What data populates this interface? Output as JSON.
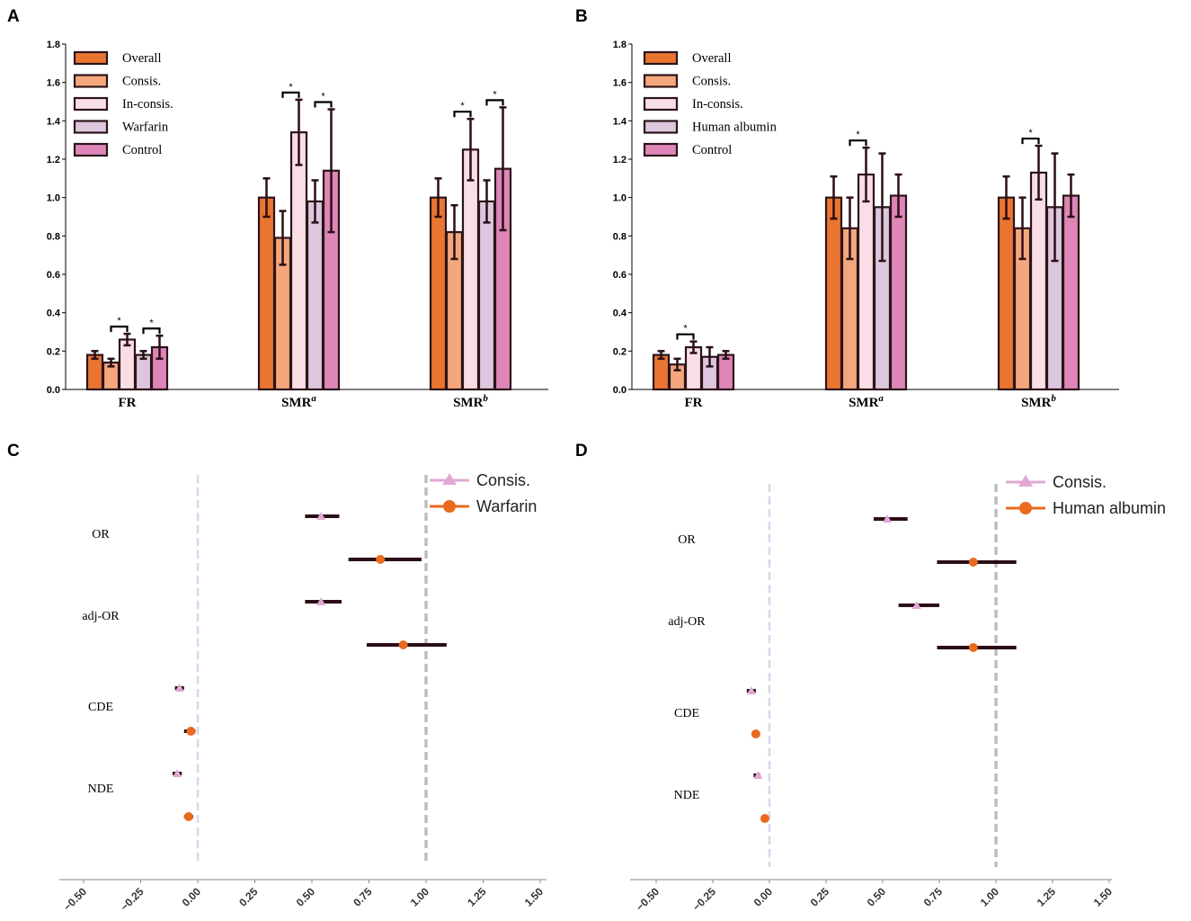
{
  "colors": {
    "Overall": "#ea7530",
    "Consis.": "#f4a77c",
    "In-consis.": "#f9dfe5",
    "Warfarin": "#dcc7df",
    "Human albumin": "#dcc7df",
    "Control": "#de86b8",
    "forest_consis": "#e2a8d4",
    "forest_group": "#ea6a1e",
    "ci_line": "#2b0f16",
    "bar_outline": "#2b1419"
  },
  "chart_data": [
    {
      "panel": "A",
      "type": "bar",
      "categories": [
        "FR",
        "SMR",
        "SMR"
      ],
      "category_superscripts": [
        "",
        "a",
        "b"
      ],
      "ylim": [
        0,
        1.8
      ],
      "yticks": [
        "0.0",
        "0.2",
        "0.4",
        "0.6",
        "0.8",
        "1.0",
        "1.2",
        "1.4",
        "1.6",
        "1.8"
      ],
      "legend": [
        "Overall",
        "Consis.",
        "In-consis.",
        "Warfarin",
        "Control"
      ],
      "series": [
        {
          "name": "Overall",
          "values": [
            0.18,
            1.0,
            1.0
          ],
          "err": [
            0.02,
            0.1,
            0.1
          ]
        },
        {
          "name": "Consis.",
          "values": [
            0.14,
            0.79,
            0.82
          ],
          "err": [
            0.02,
            0.14,
            0.14
          ]
        },
        {
          "name": "In-consis.",
          "values": [
            0.26,
            1.34,
            1.25
          ],
          "err": [
            0.03,
            0.17,
            0.16
          ]
        },
        {
          "name": "Warfarin",
          "values": [
            0.18,
            0.98,
            0.98
          ],
          "err": [
            0.02,
            0.11,
            0.11
          ]
        },
        {
          "name": "Control",
          "values": [
            0.22,
            1.14,
            1.15
          ],
          "err": [
            0.06,
            0.32,
            0.32
          ]
        }
      ],
      "significance": [
        {
          "category": 0,
          "from": 1,
          "to": 2,
          "label": "*"
        },
        {
          "category": 0,
          "from": 3,
          "to": 4,
          "label": "*"
        },
        {
          "category": 1,
          "from": 1,
          "to": 2,
          "label": "*"
        },
        {
          "category": 1,
          "from": 3,
          "to": 4,
          "label": "*"
        },
        {
          "category": 2,
          "from": 1,
          "to": 2,
          "label": "*"
        },
        {
          "category": 2,
          "from": 3,
          "to": 4,
          "label": "*"
        }
      ]
    },
    {
      "panel": "B",
      "type": "bar",
      "categories": [
        "FR",
        "SMR",
        "SMR"
      ],
      "category_superscripts": [
        "",
        "a",
        "b"
      ],
      "ylim": [
        0,
        1.8
      ],
      "yticks": [
        "0.0",
        "0.2",
        "0.4",
        "0.6",
        "0.8",
        "1.0",
        "1.2",
        "1.4",
        "1.6",
        "1.8"
      ],
      "legend": [
        "Overall",
        "Consis.",
        "In-consis.",
        "Human albumin",
        "Control"
      ],
      "series": [
        {
          "name": "Overall",
          "values": [
            0.18,
            1.0,
            1.0
          ],
          "err": [
            0.02,
            0.11,
            0.11
          ]
        },
        {
          "name": "Consis.",
          "values": [
            0.13,
            0.84,
            0.84
          ],
          "err": [
            0.03,
            0.16,
            0.16
          ]
        },
        {
          "name": "In-consis.",
          "values": [
            0.22,
            1.12,
            1.13
          ],
          "err": [
            0.03,
            0.14,
            0.14
          ]
        },
        {
          "name": "Human albumin",
          "values": [
            0.17,
            0.95,
            0.95
          ],
          "err": [
            0.05,
            0.28,
            0.28
          ]
        },
        {
          "name": "Control",
          "values": [
            0.18,
            1.01,
            1.01
          ],
          "err": [
            0.02,
            0.11,
            0.11
          ]
        }
      ],
      "significance": [
        {
          "category": 0,
          "from": 1,
          "to": 2,
          "label": "*"
        },
        {
          "category": 1,
          "from": 1,
          "to": 2,
          "label": "*"
        },
        {
          "category": 2,
          "from": 1,
          "to": 2,
          "label": "*"
        }
      ]
    },
    {
      "panel": "C",
      "type": "scatter",
      "subtype": "forest",
      "xlim": [
        -0.6,
        1.6
      ],
      "xticks": [
        "−0.50",
        "−0.25",
        "0.00",
        "0.25",
        "0.50",
        "0.75",
        "1.00",
        "1.25",
        "1.50"
      ],
      "xtick_values": [
        -0.5,
        -0.25,
        0,
        0.25,
        0.5,
        0.75,
        1.0,
        1.25,
        1.5
      ],
      "reference_lines": [
        0,
        1
      ],
      "legend": [
        "Consis.",
        "Warfarin"
      ],
      "rows": [
        "OR",
        "adj-OR",
        "CDE",
        "NDE"
      ],
      "points": [
        {
          "row": "OR",
          "series": "Consis.",
          "est": 0.54,
          "lo": 0.47,
          "hi": 0.62
        },
        {
          "row": "OR",
          "series": "Warfarin",
          "est": 0.8,
          "lo": 0.66,
          "hi": 0.98
        },
        {
          "row": "adj-OR",
          "series": "Consis.",
          "est": 0.54,
          "lo": 0.47,
          "hi": 0.63
        },
        {
          "row": "adj-OR",
          "series": "Warfarin",
          "est": 0.9,
          "lo": 0.74,
          "hi": 1.09
        },
        {
          "row": "CDE",
          "series": "Consis.",
          "est": -0.08,
          "lo": -0.1,
          "hi": -0.06
        },
        {
          "row": "CDE",
          "series": "Warfarin",
          "est": -0.03,
          "lo": -0.06,
          "hi": -0.01
        },
        {
          "row": "NDE",
          "series": "Consis.",
          "est": -0.09,
          "lo": -0.11,
          "hi": -0.07
        },
        {
          "row": "NDE",
          "series": "Warfarin",
          "est": -0.04,
          "lo": -0.06,
          "hi": -0.02
        }
      ]
    },
    {
      "panel": "D",
      "type": "scatter",
      "subtype": "forest",
      "xlim": [
        -0.6,
        1.6
      ],
      "xticks": [
        "−0.50",
        "−0.25",
        "0.00",
        "0.25",
        "0.50",
        "0.75",
        "1.00",
        "1.25",
        "1.50"
      ],
      "xtick_values": [
        -0.5,
        -0.25,
        0,
        0.25,
        0.5,
        0.75,
        1.0,
        1.25,
        1.5
      ],
      "reference_lines": [
        0,
        1
      ],
      "legend": [
        "Consis.",
        "Human albumin"
      ],
      "rows": [
        "OR",
        "adj-OR",
        "CDE",
        "NDE"
      ],
      "points": [
        {
          "row": "OR",
          "series": "Consis.",
          "est": 0.52,
          "lo": 0.46,
          "hi": 0.61
        },
        {
          "row": "OR",
          "series": "Human albumin",
          "est": 0.9,
          "lo": 0.74,
          "hi": 1.09
        },
        {
          "row": "adj-OR",
          "series": "Consis.",
          "est": 0.65,
          "lo": 0.57,
          "hi": 0.75
        },
        {
          "row": "adj-OR",
          "series": "Human albumin",
          "est": 0.9,
          "lo": 0.74,
          "hi": 1.09
        },
        {
          "row": "CDE",
          "series": "Consis.",
          "est": -0.08,
          "lo": -0.1,
          "hi": -0.06
        },
        {
          "row": "CDE",
          "series": "Human albumin",
          "est": -0.06,
          "lo": -0.07,
          "hi": -0.05
        },
        {
          "row": "NDE",
          "series": "Consis.",
          "est": -0.05,
          "lo": -0.07,
          "hi": -0.04
        },
        {
          "row": "NDE",
          "series": "Human albumin",
          "est": -0.02,
          "lo": -0.03,
          "hi": -0.01
        }
      ]
    }
  ]
}
